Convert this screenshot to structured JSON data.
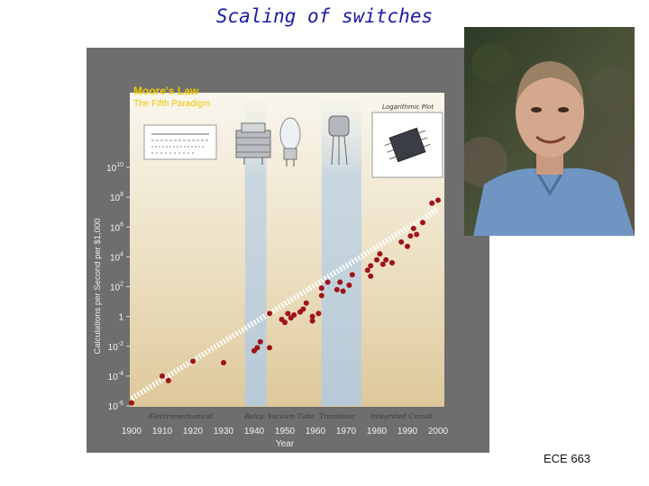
{
  "slide": {
    "title": "Scaling of switches",
    "footer": "ECE 663"
  },
  "chart_data": {
    "type": "scatter",
    "title": "Moore's Law",
    "subtitle": "The Fifth Paradigm",
    "note": "Logarithmic Plot",
    "xlabel": "Year",
    "ylabel": "Calculations per Second per $1,000",
    "xlim": [
      1900,
      2000
    ],
    "ylim": [
      -6,
      10
    ],
    "y_scale": "log10",
    "x_ticks": [
      "1900",
      "1910",
      "1920",
      "1930",
      "1940",
      "1950",
      "1960",
      "1970",
      "1980",
      "1990",
      "2000"
    ],
    "y_ticks": [
      {
        "base": "10",
        "exp": "10",
        "value": 10
      },
      {
        "base": "10",
        "exp": "8",
        "value": 8
      },
      {
        "base": "10",
        "exp": "6",
        "value": 6
      },
      {
        "base": "10",
        "exp": "4",
        "value": 4
      },
      {
        "base": "10",
        "exp": "2",
        "value": 2
      },
      {
        "base": "1",
        "exp": "",
        "value": 0
      },
      {
        "base": "10",
        "exp": "-2",
        "value": -2
      },
      {
        "base": "10",
        "exp": "-4",
        "value": -4
      },
      {
        "base": "10",
        "exp": "-6",
        "value": -6
      }
    ],
    "paradigms": [
      {
        "label": "Electromechanical",
        "x": 1916
      },
      {
        "label": "Relay",
        "x": 1940
      },
      {
        "label": "Vacuum Tube",
        "x": 1952
      },
      {
        "label": "Transistor",
        "x": 1967
      },
      {
        "label": "Integrated Circuit",
        "x": 1988
      }
    ],
    "points": [
      {
        "x": 1900,
        "y": -5.8
      },
      {
        "x": 1910,
        "y": -4.0
      },
      {
        "x": 1912,
        "y": -4.3
      },
      {
        "x": 1920,
        "y": -3.0
      },
      {
        "x": 1930,
        "y": -3.1
      },
      {
        "x": 1940,
        "y": -2.3
      },
      {
        "x": 1941,
        "y": -2.1
      },
      {
        "x": 1942,
        "y": -1.7
      },
      {
        "x": 1945,
        "y": -2.1
      },
      {
        "x": 1945,
        "y": 0.2
      },
      {
        "x": 1949,
        "y": -0.2
      },
      {
        "x": 1950,
        "y": -0.4
      },
      {
        "x": 1951,
        "y": 0.2
      },
      {
        "x": 1952,
        "y": -0.1
      },
      {
        "x": 1953,
        "y": 0.1
      },
      {
        "x": 1955,
        "y": 0.3
      },
      {
        "x": 1956,
        "y": 0.5
      },
      {
        "x": 1957,
        "y": 0.9
      },
      {
        "x": 1959,
        "y": -0.3
      },
      {
        "x": 1959,
        "y": 0.0
      },
      {
        "x": 1961,
        "y": 0.2
      },
      {
        "x": 1962,
        "y": 1.4
      },
      {
        "x": 1962,
        "y": 1.9
      },
      {
        "x": 1964,
        "y": 2.3
      },
      {
        "x": 1967,
        "y": 1.8
      },
      {
        "x": 1968,
        "y": 2.3
      },
      {
        "x": 1969,
        "y": 1.7
      },
      {
        "x": 1971,
        "y": 2.1
      },
      {
        "x": 1972,
        "y": 2.8
      },
      {
        "x": 1977,
        "y": 3.1
      },
      {
        "x": 1978,
        "y": 3.4
      },
      {
        "x": 1978,
        "y": 2.7
      },
      {
        "x": 1980,
        "y": 3.8
      },
      {
        "x": 1981,
        "y": 4.2
      },
      {
        "x": 1982,
        "y": 3.5
      },
      {
        "x": 1983,
        "y": 3.8
      },
      {
        "x": 1985,
        "y": 3.6
      },
      {
        "x": 1988,
        "y": 5.0
      },
      {
        "x": 1990,
        "y": 4.7
      },
      {
        "x": 1991,
        "y": 5.4
      },
      {
        "x": 1992,
        "y": 5.9
      },
      {
        "x": 1993,
        "y": 5.5
      },
      {
        "x": 1995,
        "y": 6.3
      },
      {
        "x": 1998,
        "y": 7.6
      },
      {
        "x": 2000,
        "y": 7.8
      }
    ],
    "point_color": "#a01218",
    "trend": {
      "from": [
        1900,
        -5.5
      ],
      "to": [
        2000,
        7.2
      ]
    },
    "grid": false,
    "legend": "none"
  }
}
